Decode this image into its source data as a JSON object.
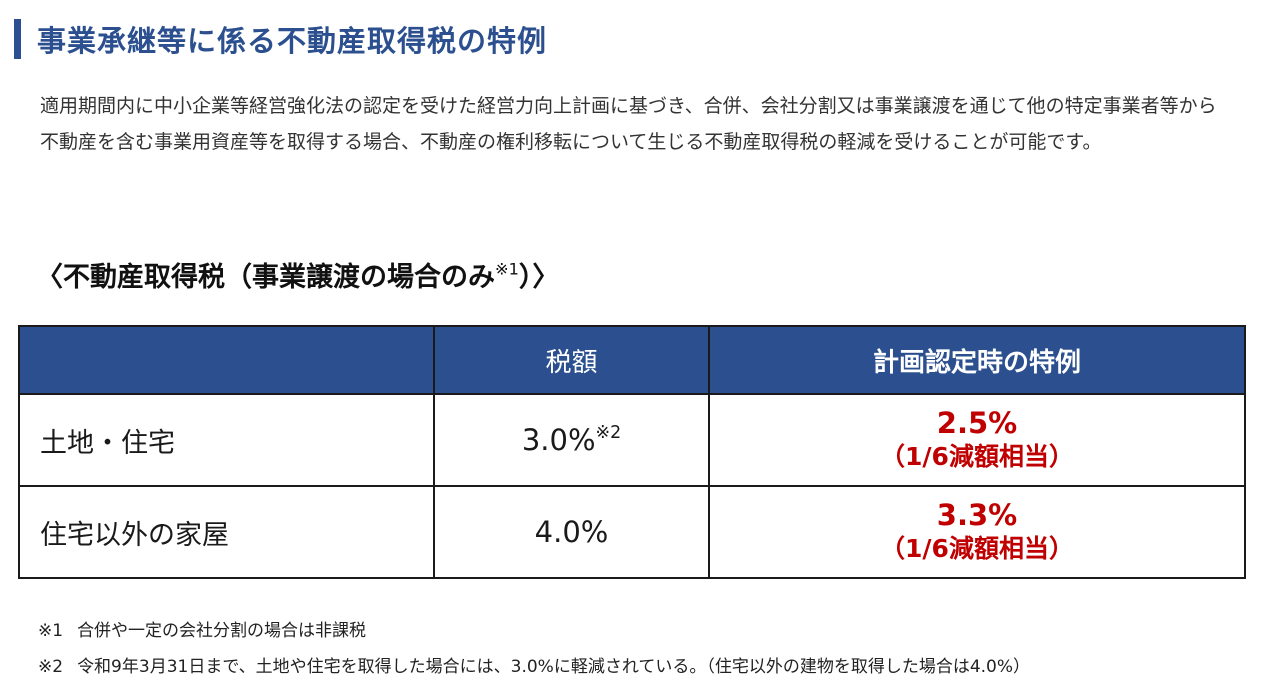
{
  "heading": {
    "title": "事業承継等に係る不動産取得税の特例"
  },
  "intro": {
    "text": "適用期間内に中小企業等経営強化法の認定を受けた経営力向上計画に基づき、合併、会社分割又は事業譲渡を通じて他の特定事業者等から不動産を含む事業用資産等を取得する場合、不動産の権利移転について生じる不動産取得税の軽減を受けることが可能です。"
  },
  "subheading": {
    "text": "〈不動産取得税（事業譲渡の場合のみ",
    "note": "※1",
    "close": "）〉"
  },
  "table": {
    "headers": [
      "",
      "税額",
      "計画認定時の特例"
    ],
    "rows": [
      {
        "label": "土地・住宅",
        "rate": "3.0%",
        "rate_note": "※2",
        "special_rate": "2.5%",
        "special_note": "（1/6減額相当）"
      },
      {
        "label": "住宅以外の家屋",
        "rate": "4.0%",
        "rate_note": "",
        "special_rate": "3.3%",
        "special_note": "（1/6減額相当）"
      }
    ]
  },
  "footnotes": [
    {
      "mark": "※1",
      "text": "合併や一定の会社分割の場合は非課税"
    },
    {
      "mark": "※2",
      "text": "令和9年3月31日まで、土地や住宅を取得した場合には、3.0%に軽減されている。（住宅以外の建物を取得した場合は4.0%）"
    }
  ],
  "colors": {
    "brand_blue": "#2b4f8f",
    "special_red": "#c00000"
  }
}
